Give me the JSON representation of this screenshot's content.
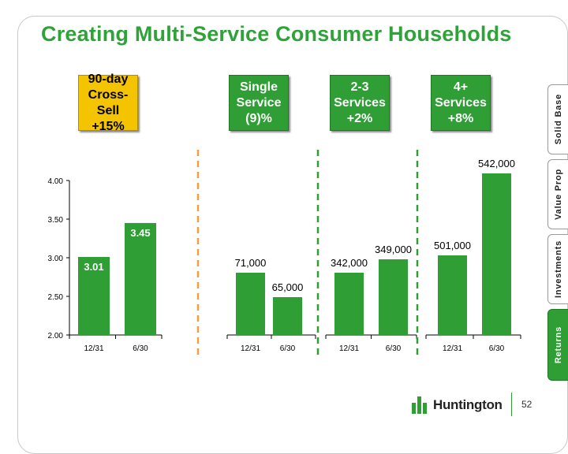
{
  "title": "Creating Multi-Service Consumer Households",
  "boxes": [
    {
      "line1": "90-day",
      "line2": "Cross-Sell",
      "line3": "+15%",
      "color": "#f5c400"
    },
    {
      "line1": "Single",
      "line2": "Service",
      "line3": "(9)%",
      "color": "#2e9e35"
    },
    {
      "line1": "2-3",
      "line2": "Services",
      "line3": "+2%",
      "color": "#2e9e35"
    },
    {
      "line1": "4+",
      "line2": "Services",
      "line3": "+8%",
      "color": "#2e9e35"
    }
  ],
  "tabs": [
    "Solid Base",
    "Value Prop",
    "Investments",
    "Returns"
  ],
  "logo": "Huntington",
  "page_number": "52",
  "colors": {
    "title": "#2fa33a",
    "bar": "#2e9e35",
    "divider_orange": "#f0a040",
    "divider_green": "#2e9e35"
  },
  "chart_data": [
    {
      "type": "bar",
      "title": "90-day Cross-Sell",
      "categories": [
        "12/31",
        "6/30"
      ],
      "values": [
        3.01,
        3.45
      ],
      "data_labels": [
        "3.01",
        "3.45"
      ],
      "ylim": [
        2.0,
        4.0
      ],
      "yticks": [
        "2.00",
        "2.50",
        "3.00",
        "3.50",
        "4.00"
      ],
      "ytick_values": [
        2.0,
        2.5,
        3.0,
        3.5,
        4.0
      ]
    },
    {
      "type": "bar",
      "title": "Single Service",
      "categories": [
        "12/31",
        "6/30"
      ],
      "values": [
        71000,
        65000
      ],
      "data_labels": [
        "71,000",
        "65,000"
      ]
    },
    {
      "type": "bar",
      "title": "2-3 Services",
      "categories": [
        "12/31",
        "6/30"
      ],
      "values": [
        342000,
        349000
      ],
      "data_labels": [
        "342,000",
        "349,000"
      ]
    },
    {
      "type": "bar",
      "title": "4+ Services",
      "categories": [
        "12/31",
        "6/30"
      ],
      "values": [
        501000,
        542000
      ],
      "data_labels": [
        "501,000",
        "542,000"
      ]
    }
  ]
}
